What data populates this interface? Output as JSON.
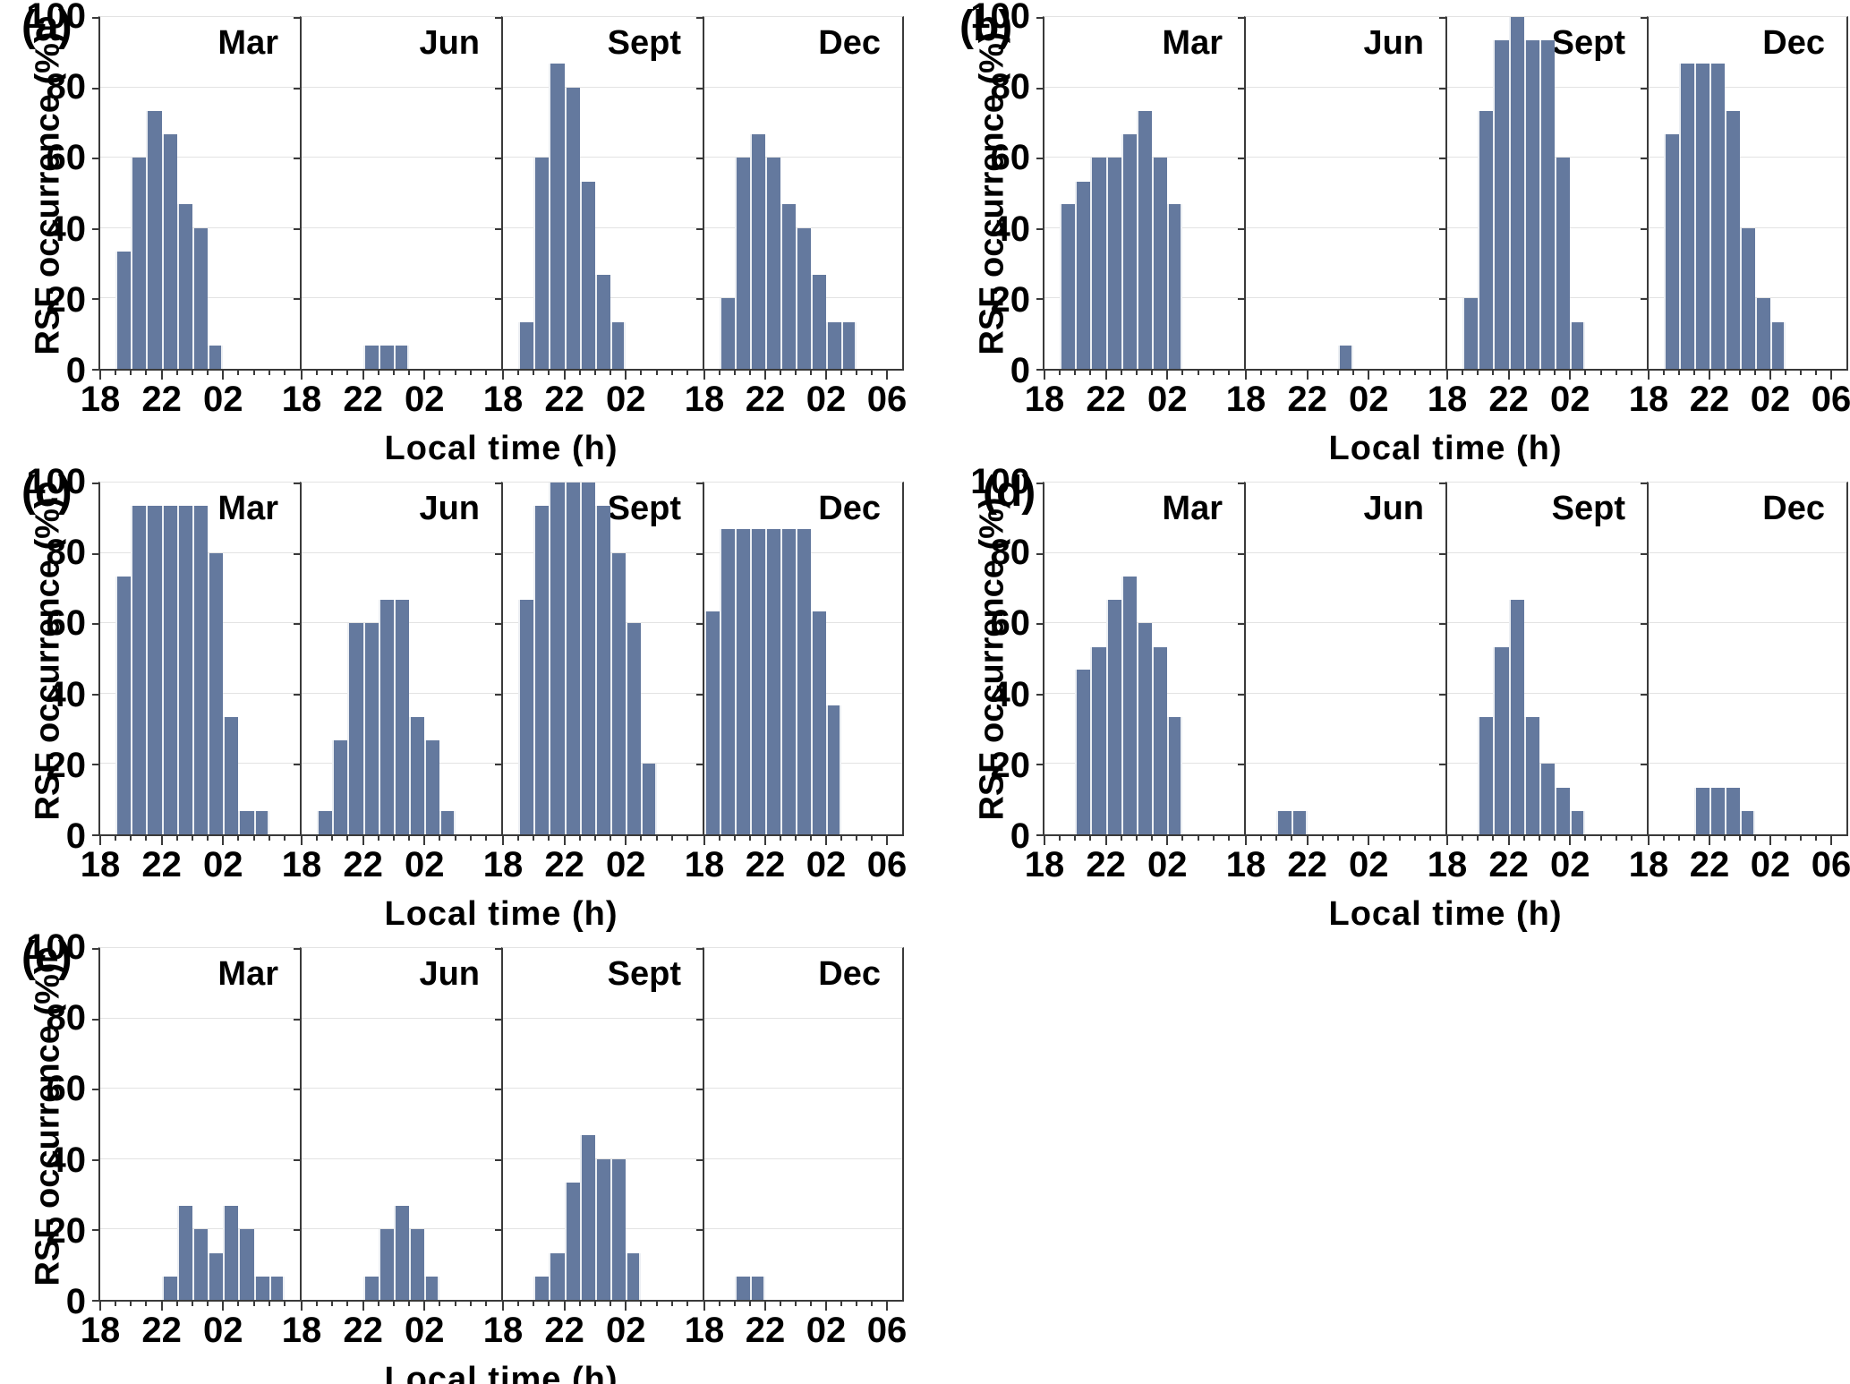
{
  "figure_title": "",
  "colors": {
    "bar_fill": "#64799E",
    "bar_separator": "#ECEFF3",
    "grid": "#E3E3E3",
    "spine": "#3A3A3A",
    "text": "#000000",
    "background": "#FFFFFF"
  },
  "chart_data": {
    "type": "bar",
    "ylabel": "RSF occurrence (%)",
    "xlabel": "Local time (h)",
    "y_ticks": [
      "0",
      "20",
      "40",
      "60",
      "80",
      "100"
    ],
    "ylim": [
      0,
      100
    ],
    "x_major_tick_labels": [
      "18",
      "22",
      "02",
      "06"
    ],
    "x_axis_hours_span": 13,
    "x_axis_start_hour": 18,
    "grid": "horizontal-light",
    "bin_width_hours": 1,
    "note_hours": "start_hour is the first 1-h bin start in local time; 24 = midnight (00), 25 = 01, etc.",
    "panels": [
      {
        "id": "a",
        "label": "(a)",
        "months": [
          {
            "name": "Mar",
            "start_hour": 19,
            "values": [
              33.3,
              60,
              73.3,
              66.7,
              46.7,
              40,
              6.7
            ]
          },
          {
            "name": "Jun",
            "start_hour": 22,
            "values": [
              6.7,
              6.7,
              6.7
            ]
          },
          {
            "name": "Sept",
            "start_hour": 19,
            "values": [
              13.3,
              60,
              86.7,
              80,
              53.3,
              26.7,
              13.3
            ]
          },
          {
            "name": "Dec",
            "start_hour": 19,
            "values": [
              20,
              60,
              66.7,
              60,
              46.7,
              40,
              26.7,
              13.3,
              13.3
            ]
          }
        ]
      },
      {
        "id": "b",
        "label": "(b)",
        "months": [
          {
            "name": "Mar",
            "start_hour": 19,
            "values": [
              46.7,
              53.3,
              60,
              60,
              66.7,
              73.3,
              60,
              46.7
            ]
          },
          {
            "name": "Jun",
            "start_hour": 24,
            "values": [
              6.7
            ]
          },
          {
            "name": "Sept",
            "start_hour": 19,
            "values": [
              20,
              73.3,
              93.3,
              100,
              93.3,
              93.3,
              60,
              13.3
            ]
          },
          {
            "name": "Dec",
            "start_hour": 19,
            "values": [
              66.7,
              86.7,
              86.7,
              86.7,
              73.3,
              40,
              20,
              13.3
            ]
          }
        ]
      },
      {
        "id": "c",
        "label": "(c)",
        "months": [
          {
            "name": "Mar",
            "start_hour": 19,
            "values": [
              73.3,
              93.3,
              93.3,
              93.3,
              93.3,
              93.3,
              80,
              33.3,
              6.7,
              6.7
            ]
          },
          {
            "name": "Jun",
            "start_hour": 19,
            "values": [
              6.7,
              26.7,
              60,
              60,
              66.7,
              66.7,
              33.3,
              26.7,
              6.7
            ]
          },
          {
            "name": "Sept",
            "start_hour": 19,
            "values": [
              66.7,
              93.3,
              100,
              100,
              100,
              93.3,
              80,
              60,
              20
            ]
          },
          {
            "name": "Dec",
            "start_hour": 18,
            "values": [
              63.3,
              86.7,
              86.7,
              86.7,
              86.7,
              86.7,
              86.7,
              63.3,
              36.7
            ]
          }
        ]
      },
      {
        "id": "d",
        "label": "(d)",
        "months": [
          {
            "name": "Mar",
            "start_hour": 20,
            "values": [
              46.7,
              53.3,
              66.7,
              73.3,
              60,
              53.3,
              33.3
            ]
          },
          {
            "name": "Jun",
            "start_hour": 20,
            "values": [
              6.7,
              6.7
            ]
          },
          {
            "name": "Sept",
            "start_hour": 20,
            "values": [
              33.3,
              53.3,
              66.7,
              33.3,
              20,
              13.3,
              6.7
            ]
          },
          {
            "name": "Dec",
            "start_hour": 21,
            "values": [
              13.3,
              13.3,
              13.3,
              6.7
            ]
          }
        ]
      },
      {
        "id": "e",
        "label": "(e)",
        "months": [
          {
            "name": "Mar",
            "start_hour": 22,
            "values": [
              6.7,
              26.7,
              20,
              13.3,
              26.7,
              20,
              6.7,
              6.7
            ]
          },
          {
            "name": "Jun",
            "start_hour": 22,
            "values": [
              6.7,
              20,
              26.7,
              20,
              6.7
            ]
          },
          {
            "name": "Sept",
            "start_hour": 20,
            "values": [
              6.7,
              13.3,
              33.3,
              46.7,
              40,
              40,
              13.3
            ]
          },
          {
            "name": "Dec",
            "start_hour": 20,
            "values": [
              6.7,
              6.7
            ]
          }
        ]
      }
    ]
  }
}
